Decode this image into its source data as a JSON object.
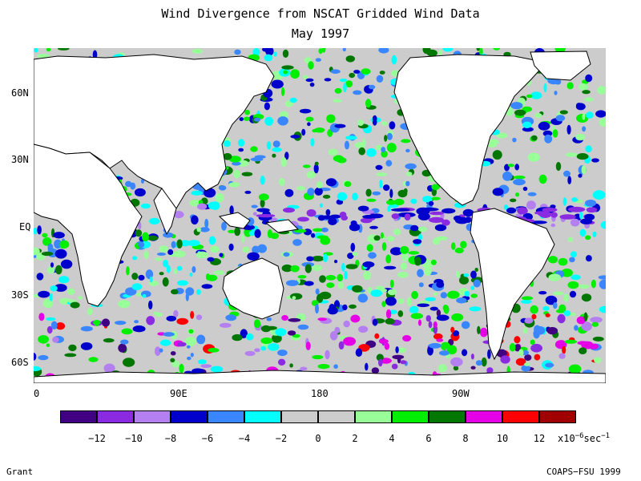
{
  "title": "Wind Divergence from NSCAT Gridded Wind Data",
  "subtitle": "May 1997",
  "lat_labels": [
    "60N",
    "30N",
    "EQ",
    "30S",
    "60S"
  ],
  "lon_labels": [
    "0",
    "90E",
    "180",
    "90W"
  ],
  "colorbar": {
    "colors": [
      "#3f0082",
      "#8a2be2",
      "#b480f0",
      "#0000cd",
      "#3a86ff",
      "#00ffff",
      "#cccccc",
      "#cccccc",
      "#99ff99",
      "#00ee00",
      "#007700",
      "#e600e6",
      "#ff0000",
      "#a00000"
    ],
    "tick_labels": [
      "−12",
      "−10",
      "−8",
      "−6",
      "−4",
      "−2",
      "0",
      "2",
      "4",
      "6",
      "8",
      "10",
      "12"
    ],
    "units_prefix": "x10",
    "units_exp": "−6",
    "units_suffix": "sec",
    "units_suffix_exp": "−1"
  },
  "footer_left": "Grant",
  "footer_right": "COAPS−FSU 1999"
}
